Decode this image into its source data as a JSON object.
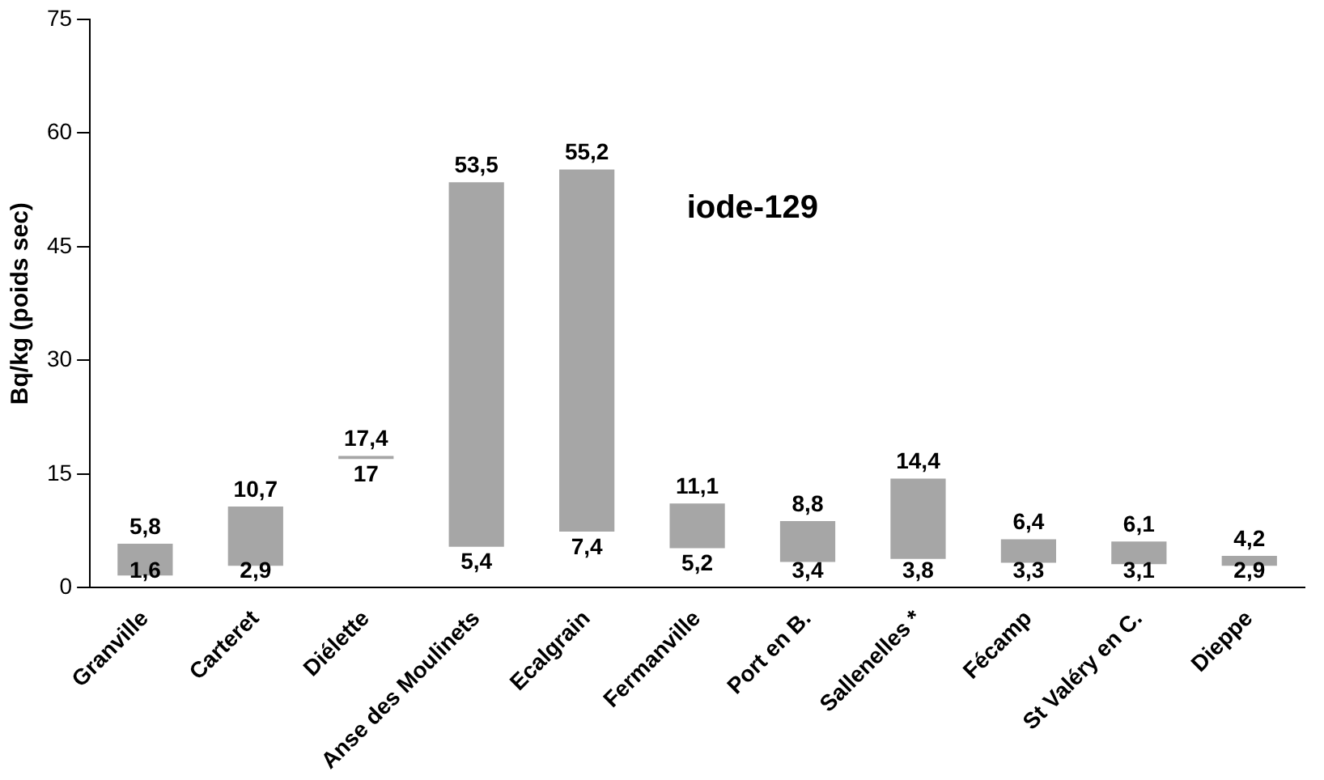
{
  "chart_data": {
    "type": "bar",
    "title": "iode-129",
    "ylabel": "Bq/kg (poids sec)",
    "categories": [
      "Granville",
      "Carteret",
      "Diélette",
      "Anse des Moulinets",
      "Ecalgrain",
      "Fermanville",
      "Port en B.",
      "Sallenelles *",
      "Fécamp",
      "St Valéry en C.",
      "Dieppe"
    ],
    "base": [
      1.6,
      2.9,
      17,
      5.4,
      7.4,
      5.2,
      3.4,
      3.8,
      3.3,
      3.1,
      2.9
    ],
    "values": [
      4.2,
      7.8,
      0.4,
      48.1,
      47.8,
      5.9,
      5.4,
      10.6,
      3.1,
      3.0,
      1.3
    ],
    "color": "#a6a6a6",
    "ylim": [
      0,
      75
    ],
    "yticks": [
      0,
      15,
      30,
      45,
      60,
      75
    ],
    "grid": false,
    "annotations": [
      {
        "text": "5,8",
        "x": "Granville",
        "y": 5.8
      },
      {
        "text": "1,6",
        "x": "Granville",
        "y": 1.6
      },
      {
        "text": "10,7",
        "x": "Carteret",
        "y": 10.7
      },
      {
        "text": "2,9",
        "x": "Carteret",
        "y": 2.9
      },
      {
        "text": "17,4",
        "x": "Diélette",
        "y": 17.4
      },
      {
        "text": "17",
        "x": "Diélette",
        "y": 17
      },
      {
        "text": "53,5",
        "x": "Anse des Moulinets",
        "y": 53.5
      },
      {
        "text": "5,4",
        "x": "Anse des Moulinets",
        "y": 5.4
      },
      {
        "text": "55,2",
        "x": "Ecalgrain",
        "y": 55.2
      },
      {
        "text": "7,4",
        "x": "Ecalgrain",
        "y": 7.4
      },
      {
        "text": "11,1",
        "x": "Fermanville",
        "y": 11.1
      },
      {
        "text": "5,2",
        "x": "Fermanville",
        "y": 5.2
      },
      {
        "text": "8,8",
        "x": "Port en B.",
        "y": 8.8
      },
      {
        "text": "3,4",
        "x": "Port en B.",
        "y": 3.4
      },
      {
        "text": "14,4",
        "x": "Sallenelles *",
        "y": 14.4
      },
      {
        "text": "3,8",
        "x": "Sallenelles *",
        "y": 3.8
      },
      {
        "text": "6,4",
        "x": "Fécamp",
        "y": 6.4
      },
      {
        "text": "3,3",
        "x": "Fécamp",
        "y": 3.3
      },
      {
        "text": "6,1",
        "x": "St Valéry en C.",
        "y": 6.1
      },
      {
        "text": "3,1",
        "x": "St Valéry en C.",
        "y": 3.1
      },
      {
        "text": "4,2",
        "x": "Dieppe",
        "y": 4.2
      },
      {
        "text": "2,9",
        "x": "Dieppe",
        "y": 2.9
      }
    ]
  }
}
